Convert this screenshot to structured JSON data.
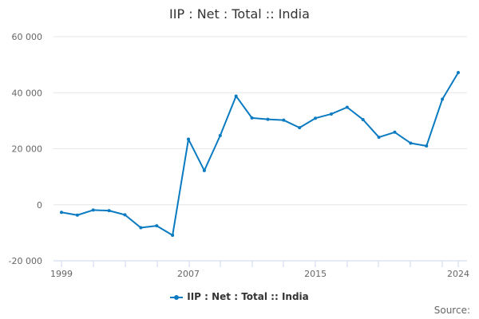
{
  "title": "IIP : Net : Total :: India",
  "legend": {
    "label": "IIP : Net : Total :: India",
    "color": "#0b7bc1"
  },
  "source_label": "Source:",
  "chart_data": {
    "type": "line",
    "title": "IIP : Net : Total :: India",
    "xlabel": "",
    "ylabel": "",
    "x": [
      1999,
      2000,
      2001,
      2002,
      2003,
      2004,
      2005,
      2006,
      2007,
      2008,
      2009,
      2010,
      2011,
      2012,
      2013,
      2014,
      2015,
      2016,
      2017,
      2018,
      2019,
      2020,
      2021,
      2022,
      2023,
      2024
    ],
    "series": [
      {
        "name": "IIP : Net : Total :: India",
        "color": "#0b7bc1",
        "values": [
          -2700,
          -3700,
          -1900,
          -2100,
          -3600,
          -8200,
          -7500,
          -10900,
          23400,
          12200,
          24700,
          38800,
          31000,
          30500,
          30200,
          27500,
          30900,
          32400,
          34800,
          30400,
          24100,
          25900,
          22000,
          21000,
          37700,
          47200
        ]
      }
    ],
    "ylim": [
      -20000,
      60000
    ],
    "yticks": [
      -20000,
      0,
      20000,
      40000,
      60000
    ],
    "ytick_labels": [
      "-20 000",
      "0",
      "20 000",
      "40 000",
      "60 000"
    ],
    "xtick_labels": [
      "1999",
      "2007",
      "2015",
      "2024"
    ],
    "grid": true,
    "legend_position": "bottom"
  }
}
